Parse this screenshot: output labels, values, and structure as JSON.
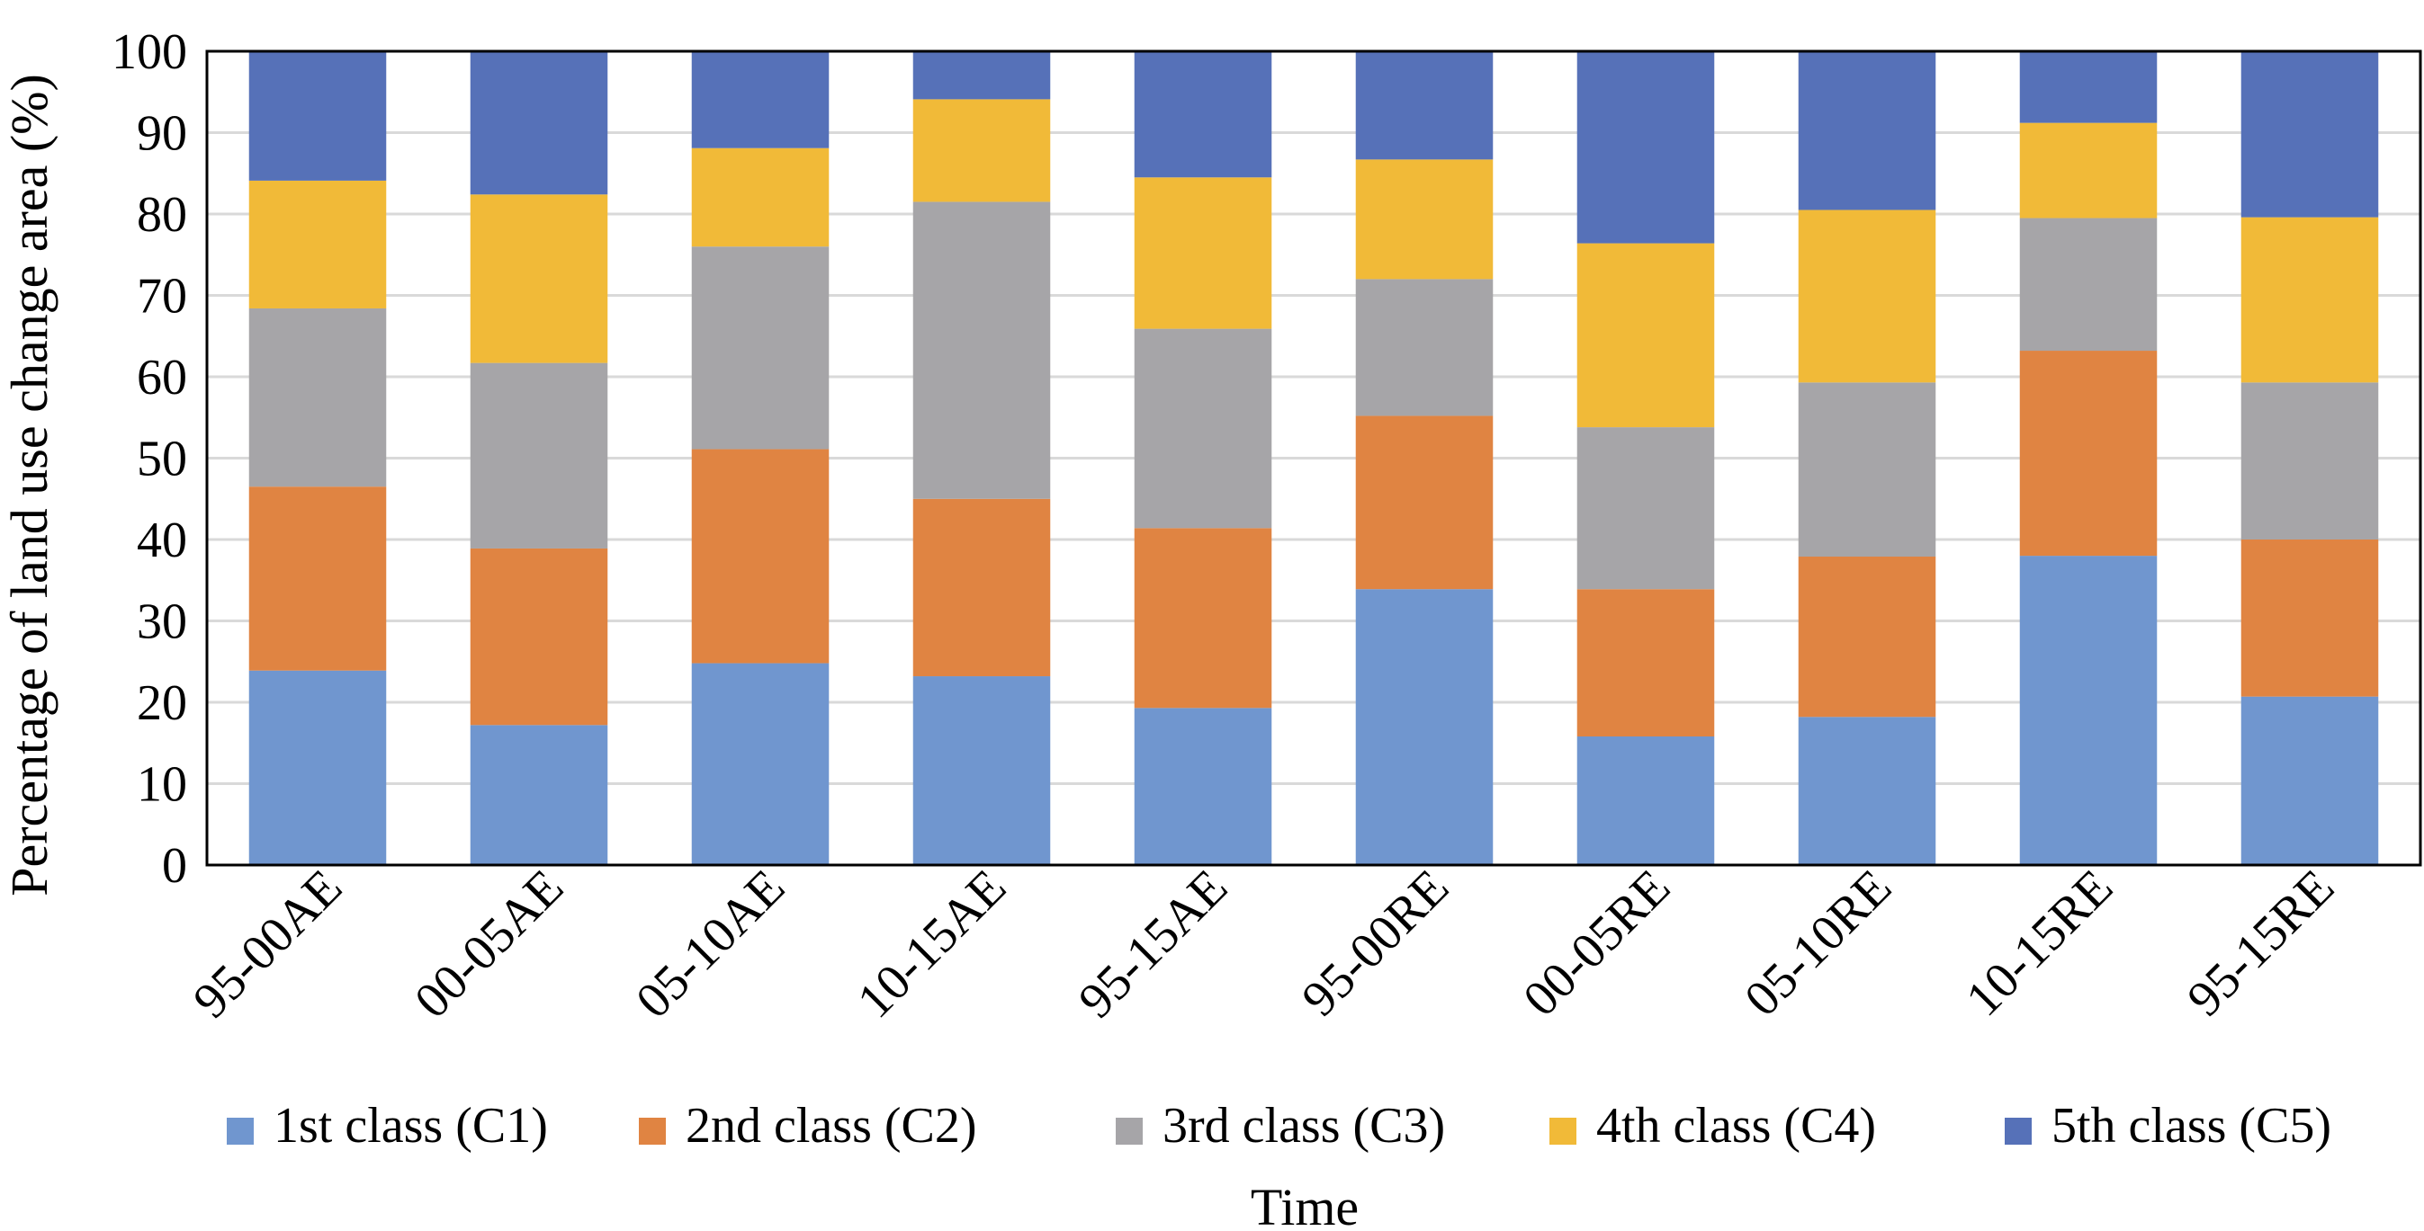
{
  "chart_data": {
    "type": "bar",
    "stacked": true,
    "categories": [
      "95-00AE",
      "00-05AE",
      "05-10AE",
      "10-15AE",
      "95-15AE",
      "95-00RE",
      "00-05RE",
      "05-10RE",
      "10-15RE",
      "95-15RE"
    ],
    "series": [
      {
        "name": "1st class (C1)",
        "color": "#7096CF",
        "values": [
          23.9,
          17.2,
          24.8,
          23.2,
          19.3,
          33.9,
          15.8,
          18.2,
          38.0,
          20.7
        ]
      },
      {
        "name": "2nd class (C2)",
        "color": "#E08442",
        "values": [
          22.6,
          21.7,
          26.3,
          21.8,
          22.1,
          21.3,
          18.1,
          19.7,
          25.2,
          19.3
        ]
      },
      {
        "name": "3rd class (C3)",
        "color": "#A6A5A8",
        "values": [
          21.9,
          22.8,
          24.9,
          36.5,
          24.5,
          16.8,
          19.9,
          21.4,
          16.3,
          19.3
        ]
      },
      {
        "name": "4th class (C4)",
        "color": "#F1BA38",
        "values": [
          15.7,
          20.7,
          12.1,
          12.6,
          18.6,
          14.7,
          22.6,
          21.2,
          11.7,
          20.3
        ]
      },
      {
        "name": "5th class (C5)",
        "color": "#5671B8",
        "values": [
          15.9,
          17.6,
          11.9,
          5.9,
          15.5,
          13.3,
          23.6,
          19.5,
          8.8,
          20.4
        ]
      }
    ],
    "xlabel": "Time",
    "ylabel": "Percentage of land use change area (%)",
    "ylim": [
      0,
      100
    ],
    "yticks": [
      0,
      10,
      20,
      30,
      40,
      50,
      60,
      70,
      80,
      90,
      100
    ],
    "grid": true,
    "legend": "bottom"
  }
}
